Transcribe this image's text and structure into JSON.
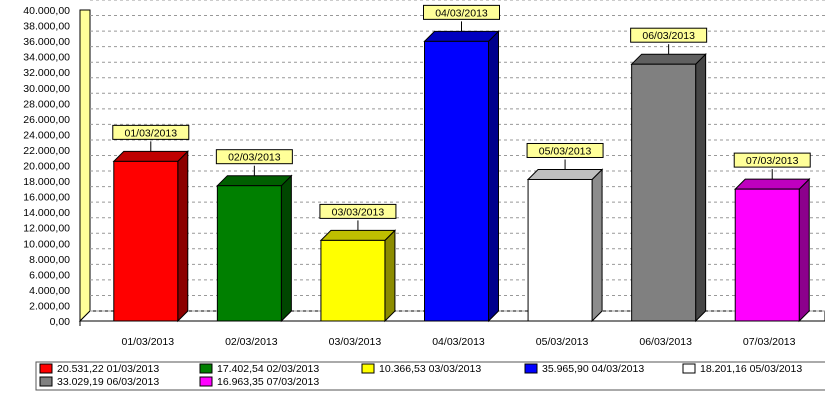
{
  "chart_data": {
    "type": "bar",
    "title": "",
    "xlabel": "",
    "ylabel": "",
    "ylim": [
      0,
      40000
    ],
    "y_tick_step": 2000,
    "categories": [
      "01/03/2013",
      "02/03/2013",
      "03/03/2013",
      "04/03/2013",
      "05/03/2013",
      "06/03/2013",
      "07/03/2013"
    ],
    "values": [
      20531.22,
      17402.54,
      10366.53,
      35965.9,
      18201.16,
      33029.19,
      16963.35
    ],
    "colors": [
      "#ff0000",
      "#007f00",
      "#ffff00",
      "#0000ff",
      "#ffffff",
      "#808080",
      "#ff00ff"
    ],
    "data_labels": [
      "01/03/2013",
      "02/03/2013",
      "03/03/2013",
      "04/03/2013",
      "05/03/2013",
      "06/03/2013",
      "07/03/2013"
    ],
    "y_tick_labels": [
      "0,00",
      "2.000,00",
      "4.000,00",
      "6.000,00",
      "8.000,00",
      "10.000,00",
      "12.000,00",
      "14.000,00",
      "16.000,00",
      "18.000,00",
      "20.000,00",
      "22.000,00",
      "24.000,00",
      "26.000,00",
      "28.000,00",
      "30.000,00",
      "32.000,00",
      "34.000,00",
      "36.000,00",
      "38.000,00",
      "40.000,00"
    ],
    "legend": [
      "20.531,22 01/03/2013",
      "17.402,54 02/03/2013",
      "10.366,53 03/03/2013",
      "35.965,90 04/03/2013",
      "18.201,16 05/03/2013",
      "33.029,19 06/03/2013",
      "16.963,35 07/03/2013"
    ],
    "legend_position": "bottom",
    "grid": true,
    "style": "3d-bar"
  }
}
